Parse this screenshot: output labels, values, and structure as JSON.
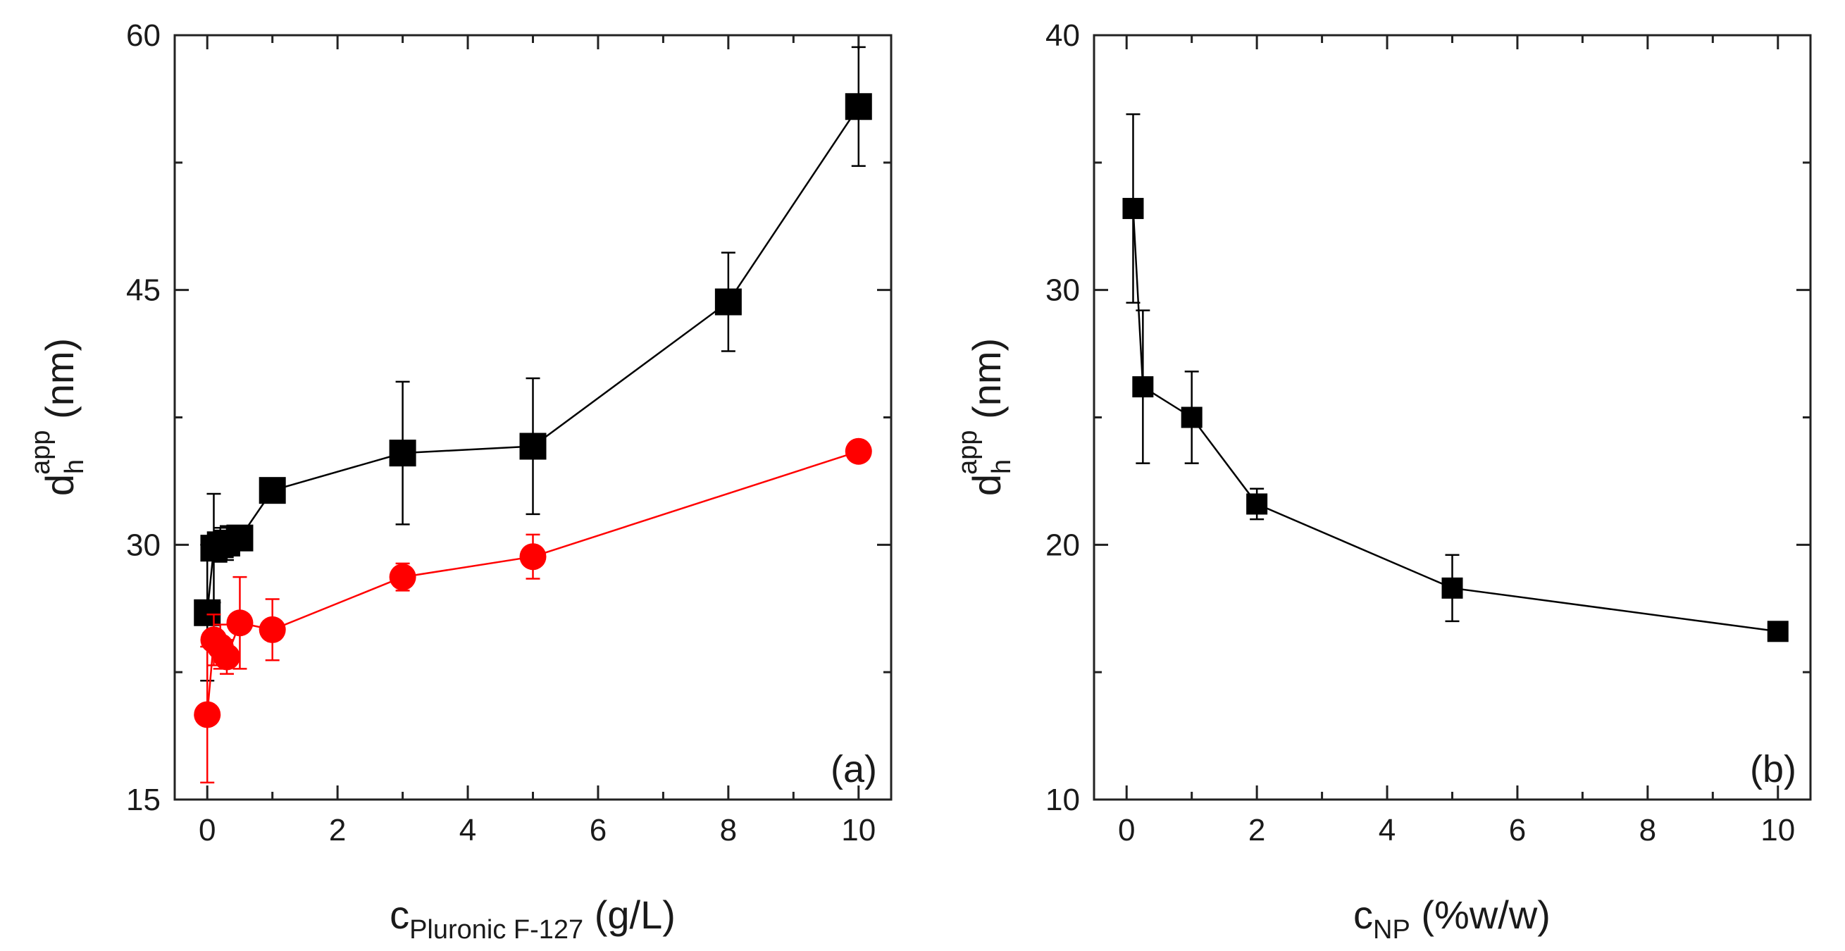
{
  "chart_data": [
    {
      "type": "scatter",
      "panel_label": "(a)",
      "xlabel": {
        "main": "c",
        "sub": "Pluronic F-127",
        "unit": " (g/L)"
      },
      "ylabel": {
        "main": "d",
        "sub": "h",
        "sup": "app",
        "unit": " (nm)"
      },
      "xlim": [
        -0.5,
        10.5
      ],
      "ylim": [
        15,
        60
      ],
      "xticks": [
        0,
        2,
        4,
        6,
        8,
        10
      ],
      "xtick_labels": [
        "0",
        "2",
        "4",
        "6",
        "8",
        "10"
      ],
      "yticks": [
        15,
        30,
        45,
        60
      ],
      "ytick_labels": [
        "15",
        "30",
        "45",
        "60"
      ],
      "series": [
        {
          "name": "black squares",
          "marker": "square",
          "color": "#000000",
          "x": [
            0.0,
            0.1,
            0.2,
            0.3,
            0.5,
            1.0,
            3.0,
            5.0,
            8.0,
            10.0
          ],
          "y": [
            26.0,
            29.8,
            30.0,
            30.1,
            30.4,
            33.2,
            35.4,
            35.8,
            44.3,
            55.8
          ],
          "err": [
            4.0,
            3.2,
            1.0,
            1.0,
            0.5,
            0.5,
            4.2,
            4.0,
            2.9,
            3.5
          ]
        },
        {
          "name": "red circles",
          "marker": "circle",
          "color": "#ff0000",
          "x": [
            0.0,
            0.1,
            0.2,
            0.3,
            0.5,
            1.0,
            3.0,
            5.0,
            10.0
          ],
          "y": [
            20.0,
            24.4,
            24.0,
            23.4,
            25.4,
            25.0,
            28.1,
            29.3,
            35.5
          ],
          "err": [
            4.0,
            1.5,
            1.3,
            1.0,
            2.7,
            1.8,
            0.8,
            1.3,
            0.5
          ]
        }
      ]
    },
    {
      "type": "scatter",
      "panel_label": "(b)",
      "xlabel": {
        "main": "c",
        "sub": "NP",
        "unit": " (%w/w)"
      },
      "ylabel": {
        "main": "d",
        "sub": "h",
        "sup": "app",
        "unit": " (nm)"
      },
      "xlim": [
        -0.5,
        10.5
      ],
      "ylim": [
        10,
        40
      ],
      "xticks": [
        0,
        2,
        4,
        6,
        8,
        10
      ],
      "xtick_labels": [
        "0",
        "2",
        "4",
        "6",
        "8",
        "10"
      ],
      "yticks": [
        10,
        20,
        30,
        40
      ],
      "ytick_labels": [
        "10",
        "20",
        "30",
        "40"
      ],
      "series": [
        {
          "name": "black squares",
          "marker": "square",
          "color": "#000000",
          "x": [
            0.1,
            0.25,
            1.0,
            2.0,
            5.0,
            10.0
          ],
          "y": [
            33.2,
            26.2,
            25.0,
            21.6,
            18.3,
            16.6
          ],
          "err": [
            3.7,
            3.0,
            1.8,
            0.6,
            1.3,
            0.3
          ]
        }
      ]
    }
  ]
}
